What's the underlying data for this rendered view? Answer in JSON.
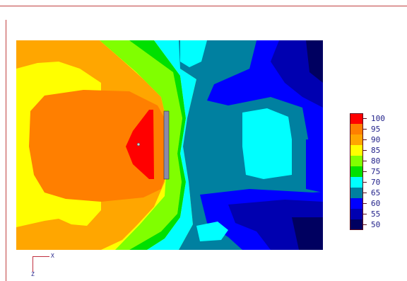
{
  "legend": {
    "entries": [
      {
        "label": "100",
        "color": "#ff0000"
      },
      {
        "label": "95",
        "color": "#ff7f00"
      },
      {
        "label": "90",
        "color": "#ffa600"
      },
      {
        "label": "85",
        "color": "#ffff00"
      },
      {
        "label": "80",
        "color": "#80ff00"
      },
      {
        "label": "75",
        "color": "#00e000"
      },
      {
        "label": "70",
        "color": "#00ffff"
      },
      {
        "label": "65",
        "color": "#0080a0"
      },
      {
        "label": "60",
        "color": "#0000ff"
      },
      {
        "label": "55",
        "color": "#0000b0"
      },
      {
        "label": "50",
        "color": "#000060"
      }
    ]
  },
  "axes": {
    "x_label": "X",
    "z_label": "Z"
  },
  "colors": {
    "rule": "#c04040",
    "label_text": "#22228a"
  }
}
